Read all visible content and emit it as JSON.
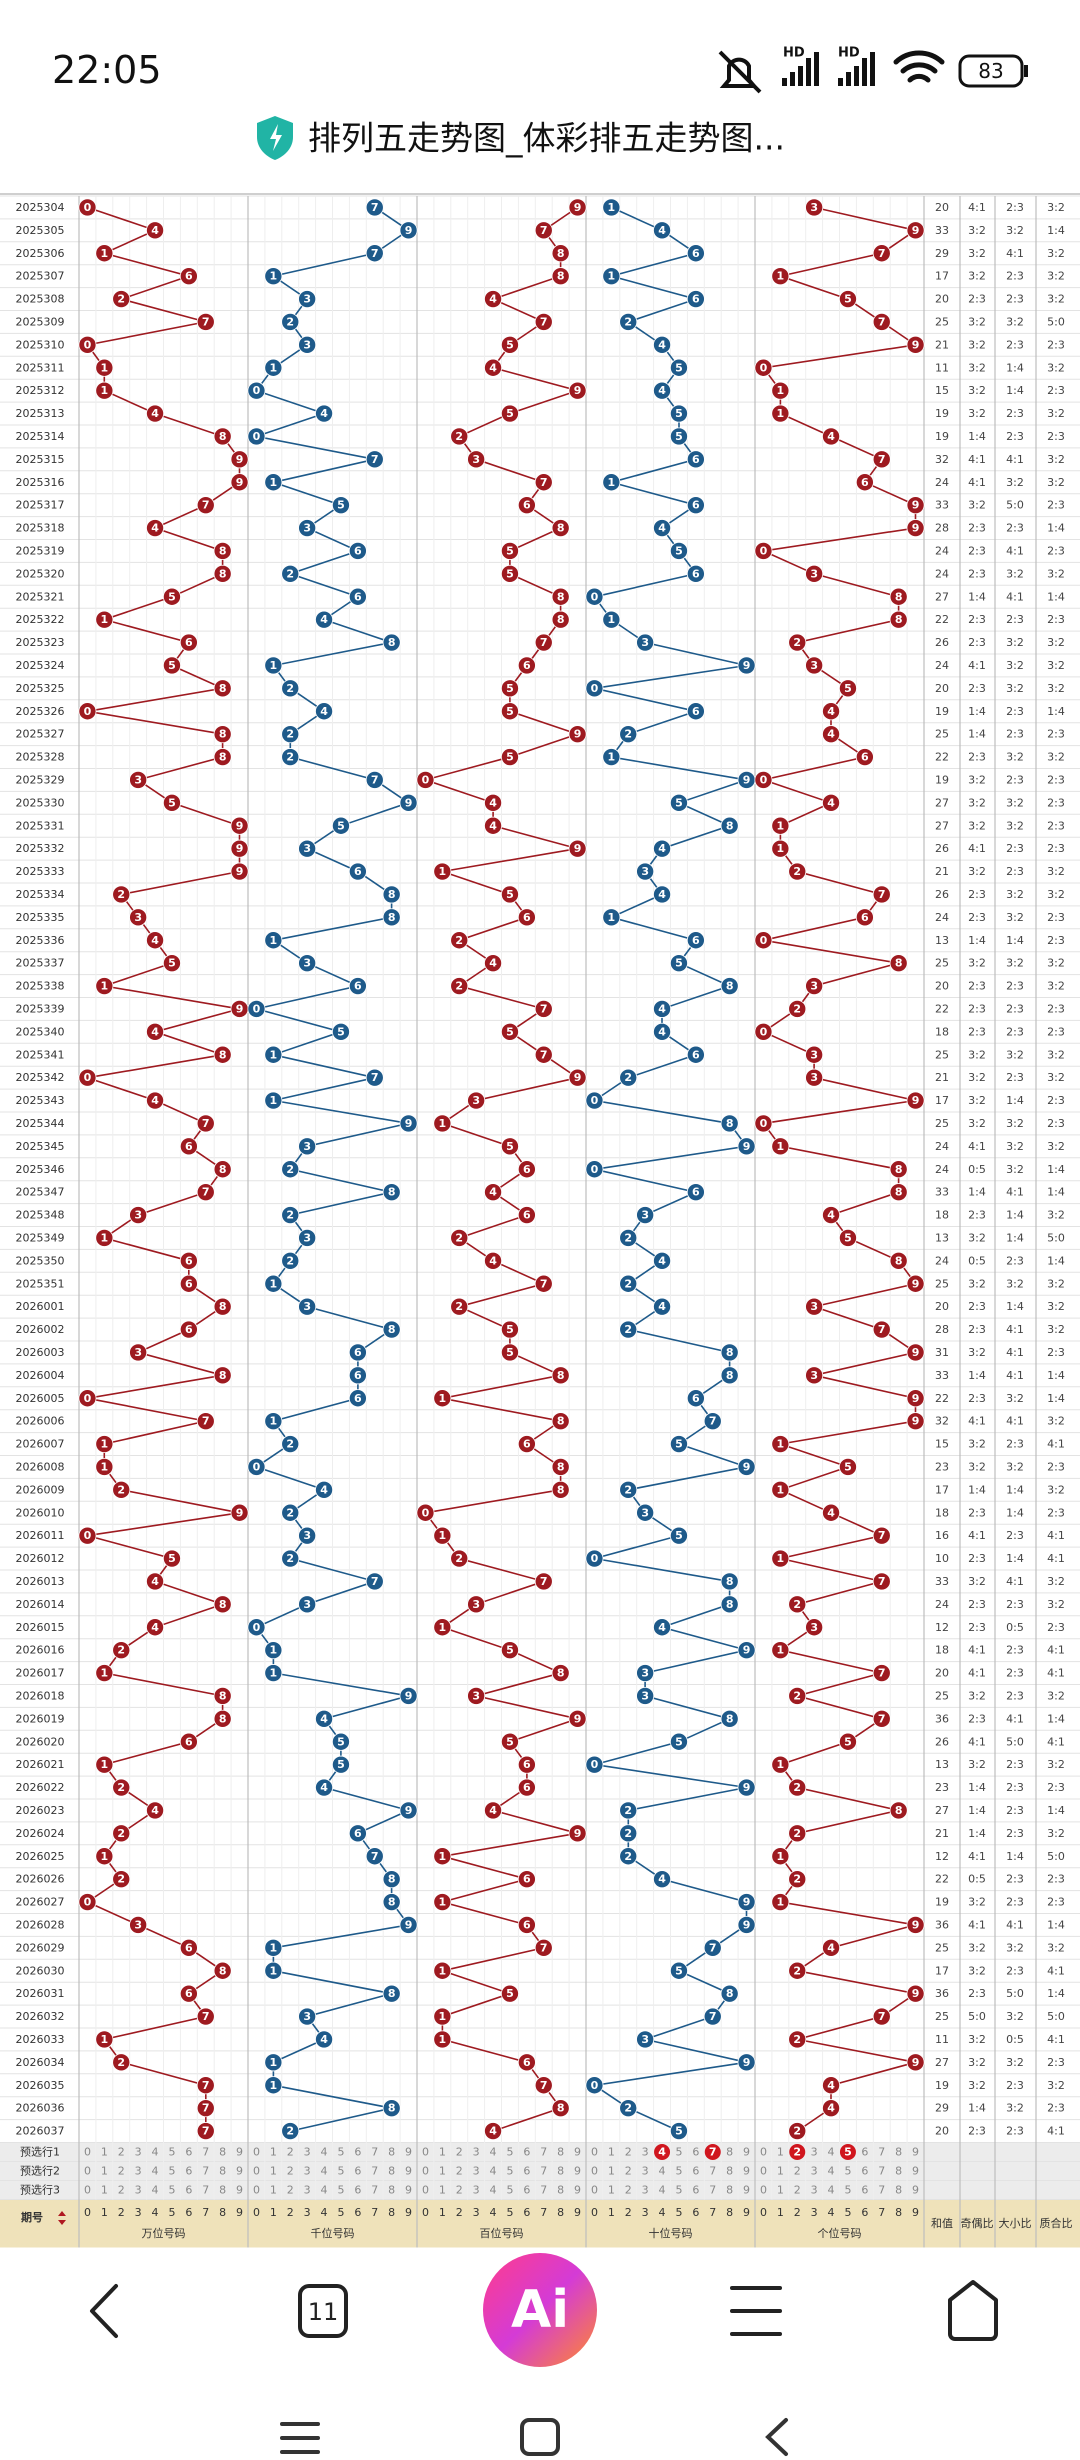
{
  "status_bar": {
    "time": "22:05",
    "network": [
      "HD",
      "HD"
    ],
    "battery": "83"
  },
  "header": {
    "title": "排列五走势图_体彩排五走势图..."
  },
  "table": {
    "rows": [
      [
        "2025304",
        0,
        7,
        9,
        1,
        3,
        20,
        "4:1",
        "2:3",
        "3:2"
      ],
      [
        "2025305",
        4,
        9,
        7,
        4,
        9,
        33,
        "3:2",
        "3:2",
        "1:4"
      ],
      [
        "2025306",
        1,
        7,
        8,
        6,
        7,
        29,
        "3:2",
        "4:1",
        "3:2"
      ],
      [
        "2025307",
        6,
        1,
        8,
        1,
        1,
        17,
        "3:2",
        "2:3",
        "3:2"
      ],
      [
        "2025308",
        2,
        3,
        4,
        6,
        5,
        20,
        "2:3",
        "2:3",
        "3:2"
      ],
      [
        "2025309",
        7,
        2,
        7,
        2,
        7,
        25,
        "3:2",
        "3:2",
        "5:0"
      ],
      [
        "2025310",
        0,
        3,
        5,
        4,
        9,
        21,
        "3:2",
        "2:3",
        "2:3"
      ],
      [
        "2025311",
        1,
        1,
        4,
        5,
        0,
        11,
        "3:2",
        "1:4",
        "3:2"
      ],
      [
        "2025312",
        1,
        0,
        9,
        4,
        1,
        15,
        "3:2",
        "1:4",
        "2:3"
      ],
      [
        "2025313",
        4,
        4,
        5,
        5,
        1,
        19,
        "3:2",
        "2:3",
        "3:2"
      ],
      [
        "2025314",
        8,
        0,
        2,
        5,
        4,
        19,
        "1:4",
        "2:3",
        "2:3"
      ],
      [
        "2025315",
        9,
        7,
        3,
        6,
        7,
        32,
        "4:1",
        "4:1",
        "3:2"
      ],
      [
        "2025316",
        9,
        1,
        7,
        1,
        6,
        24,
        "4:1",
        "3:2",
        "3:2"
      ],
      [
        "2025317",
        7,
        5,
        6,
        6,
        9,
        33,
        "3:2",
        "5:0",
        "2:3"
      ],
      [
        "2025318",
        4,
        3,
        8,
        4,
        9,
        28,
        "2:3",
        "2:3",
        "1:4"
      ],
      [
        "2025319",
        8,
        6,
        5,
        5,
        0,
        24,
        "2:3",
        "4:1",
        "2:3"
      ],
      [
        "2025320",
        8,
        2,
        5,
        6,
        3,
        24,
        "2:3",
        "3:2",
        "3:2"
      ],
      [
        "2025321",
        5,
        6,
        8,
        0,
        8,
        27,
        "1:4",
        "4:1",
        "1:4"
      ],
      [
        "2025322",
        1,
        4,
        8,
        1,
        8,
        22,
        "2:3",
        "2:3",
        "2:3"
      ],
      [
        "2025323",
        6,
        8,
        7,
        3,
        2,
        26,
        "2:3",
        "3:2",
        "3:2"
      ],
      [
        "2025324",
        5,
        1,
        6,
        9,
        3,
        24,
        "4:1",
        "3:2",
        "3:2"
      ],
      [
        "2025325",
        8,
        2,
        5,
        0,
        5,
        20,
        "2:3",
        "3:2",
        "3:2"
      ],
      [
        "2025326",
        0,
        4,
        5,
        6,
        4,
        19,
        "1:4",
        "2:3",
        "1:4"
      ],
      [
        "2025327",
        8,
        2,
        9,
        2,
        4,
        25,
        "1:4",
        "2:3",
        "2:3"
      ],
      [
        "2025328",
        8,
        2,
        5,
        1,
        6,
        22,
        "2:3",
        "3:2",
        "3:2"
      ],
      [
        "2025329",
        3,
        7,
        0,
        9,
        0,
        19,
        "3:2",
        "2:3",
        "2:3"
      ],
      [
        "2025330",
        5,
        9,
        4,
        5,
        4,
        27,
        "3:2",
        "3:2",
        "2:3"
      ],
      [
        "2025331",
        9,
        5,
        4,
        8,
        1,
        27,
        "3:2",
        "3:2",
        "2:3"
      ],
      [
        "2025332",
        9,
        3,
        9,
        4,
        1,
        26,
        "4:1",
        "2:3",
        "2:3"
      ],
      [
        "2025333",
        9,
        6,
        1,
        3,
        2,
        21,
        "3:2",
        "2:3",
        "3:2"
      ],
      [
        "2025334",
        2,
        8,
        5,
        4,
        7,
        26,
        "2:3",
        "3:2",
        "3:2"
      ],
      [
        "2025335",
        3,
        8,
        6,
        1,
        6,
        24,
        "2:3",
        "3:2",
        "2:3"
      ],
      [
        "2025336",
        4,
        1,
        2,
        6,
        0,
        13,
        "1:4",
        "1:4",
        "2:3"
      ],
      [
        "2025337",
        5,
        3,
        4,
        5,
        8,
        25,
        "3:2",
        "3:2",
        "3:2"
      ],
      [
        "2025338",
        1,
        6,
        2,
        8,
        3,
        20,
        "2:3",
        "2:3",
        "3:2"
      ],
      [
        "2025339",
        9,
        0,
        7,
        4,
        2,
        22,
        "2:3",
        "2:3",
        "2:3"
      ],
      [
        "2025340",
        4,
        5,
        5,
        4,
        0,
        18,
        "2:3",
        "2:3",
        "2:3"
      ],
      [
        "2025341",
        8,
        1,
        7,
        6,
        3,
        25,
        "3:2",
        "3:2",
        "3:2"
      ],
      [
        "2025342",
        0,
        7,
        9,
        2,
        3,
        21,
        "3:2",
        "2:3",
        "3:2"
      ],
      [
        "2025343",
        4,
        1,
        3,
        0,
        9,
        17,
        "3:2",
        "1:4",
        "2:3"
      ],
      [
        "2025344",
        7,
        9,
        1,
        8,
        0,
        25,
        "3:2",
        "3:2",
        "2:3"
      ],
      [
        "2025345",
        6,
        3,
        5,
        9,
        1,
        24,
        "4:1",
        "3:2",
        "3:2"
      ],
      [
        "2025346",
        8,
        2,
        6,
        0,
        8,
        24,
        "0:5",
        "3:2",
        "1:4"
      ],
      [
        "2025347",
        7,
        8,
        4,
        6,
        8,
        33,
        "1:4",
        "4:1",
        "1:4"
      ],
      [
        "2025348",
        3,
        2,
        6,
        3,
        4,
        18,
        "2:3",
        "1:4",
        "3:2"
      ],
      [
        "2025349",
        1,
        3,
        2,
        2,
        5,
        13,
        "3:2",
        "1:4",
        "5:0"
      ],
      [
        "2025350",
        6,
        2,
        4,
        4,
        8,
        24,
        "0:5",
        "2:3",
        "1:4"
      ],
      [
        "2025351",
        6,
        1,
        7,
        2,
        9,
        25,
        "3:2",
        "3:2",
        "3:2"
      ],
      [
        "2026001",
        8,
        3,
        2,
        4,
        3,
        20,
        "2:3",
        "1:4",
        "3:2"
      ],
      [
        "2026002",
        6,
        8,
        5,
        2,
        7,
        28,
        "2:3",
        "4:1",
        "3:2"
      ],
      [
        "2026003",
        3,
        6,
        5,
        8,
        9,
        31,
        "3:2",
        "4:1",
        "2:3"
      ],
      [
        "2026004",
        8,
        6,
        8,
        8,
        3,
        33,
        "1:4",
        "4:1",
        "1:4"
      ],
      [
        "2026005",
        0,
        6,
        1,
        6,
        9,
        22,
        "2:3",
        "3:2",
        "1:4"
      ],
      [
        "2026006",
        7,
        1,
        8,
        7,
        9,
        32,
        "4:1",
        "4:1",
        "3:2"
      ],
      [
        "2026007",
        1,
        2,
        6,
        5,
        1,
        15,
        "3:2",
        "2:3",
        "4:1"
      ],
      [
        "2026008",
        1,
        0,
        8,
        9,
        5,
        23,
        "3:2",
        "3:2",
        "2:3"
      ],
      [
        "2026009",
        2,
        4,
        8,
        2,
        1,
        17,
        "1:4",
        "1:4",
        "3:2"
      ],
      [
        "2026010",
        9,
        2,
        0,
        3,
        4,
        18,
        "2:3",
        "1:4",
        "2:3"
      ],
      [
        "2026011",
        0,
        3,
        1,
        5,
        7,
        16,
        "4:1",
        "2:3",
        "4:1"
      ],
      [
        "2026012",
        5,
        2,
        2,
        0,
        1,
        10,
        "2:3",
        "1:4",
        "4:1"
      ],
      [
        "2026013",
        4,
        7,
        7,
        8,
        7,
        33,
        "3:2",
        "4:1",
        "3:2"
      ],
      [
        "2026014",
        8,
        3,
        3,
        8,
        2,
        24,
        "2:3",
        "2:3",
        "3:2"
      ],
      [
        "2026015",
        4,
        0,
        1,
        4,
        3,
        12,
        "2:3",
        "0:5",
        "2:3"
      ],
      [
        "2026016",
        2,
        1,
        5,
        9,
        1,
        18,
        "4:1",
        "2:3",
        "4:1"
      ],
      [
        "2026017",
        1,
        1,
        8,
        3,
        7,
        20,
        "4:1",
        "2:3",
        "4:1"
      ],
      [
        "2026018",
        8,
        9,
        3,
        3,
        2,
        25,
        "3:2",
        "2:3",
        "3:2"
      ],
      [
        "2026019",
        8,
        4,
        9,
        8,
        7,
        36,
        "2:3",
        "4:1",
        "1:4"
      ],
      [
        "2026020",
        6,
        5,
        5,
        5,
        5,
        26,
        "4:1",
        "5:0",
        "4:1"
      ],
      [
        "2026021",
        1,
        5,
        6,
        0,
        1,
        13,
        "3:2",
        "2:3",
        "3:2"
      ],
      [
        "2026022",
        2,
        4,
        6,
        9,
        2,
        23,
        "1:4",
        "2:3",
        "2:3"
      ],
      [
        "2026023",
        4,
        9,
        4,
        2,
        8,
        27,
        "1:4",
        "2:3",
        "1:4"
      ],
      [
        "2026024",
        2,
        6,
        9,
        2,
        2,
        21,
        "1:4",
        "2:3",
        "3:2"
      ],
      [
        "2026025",
        1,
        7,
        1,
        2,
        1,
        12,
        "4:1",
        "1:4",
        "5:0"
      ],
      [
        "2026026",
        2,
        8,
        6,
        4,
        2,
        22,
        "0:5",
        "2:3",
        "2:3"
      ],
      [
        "2026027",
        0,
        8,
        1,
        9,
        1,
        19,
        "3:2",
        "2:3",
        "2:3"
      ],
      [
        "2026028",
        3,
        9,
        6,
        9,
        9,
        36,
        "4:1",
        "4:1",
        "1:4"
      ],
      [
        "2026029",
        6,
        1,
        7,
        7,
        4,
        25,
        "3:2",
        "3:2",
        "3:2"
      ],
      [
        "2026030",
        8,
        1,
        1,
        5,
        2,
        17,
        "3:2",
        "2:3",
        "4:1"
      ],
      [
        "2026031",
        6,
        8,
        5,
        8,
        9,
        36,
        "2:3",
        "5:0",
        "1:4"
      ],
      [
        "2026032",
        7,
        3,
        1,
        7,
        7,
        25,
        "5:0",
        "3:2",
        "5:0"
      ],
      [
        "2026033",
        1,
        4,
        1,
        3,
        2,
        11,
        "3:2",
        "0:5",
        "4:1"
      ],
      [
        "2026034",
        2,
        1,
        6,
        9,
        9,
        27,
        "3:2",
        "3:2",
        "2:3"
      ],
      [
        "2026035",
        7,
        1,
        7,
        0,
        4,
        19,
        "3:2",
        "2:3",
        "3:2"
      ],
      [
        "2026036",
        7,
        8,
        8,
        2,
        4,
        29,
        "1:4",
        "3:2",
        "2:3"
      ],
      [
        "2026037",
        7,
        2,
        4,
        5,
        2,
        20,
        "2:3",
        "2:3",
        "4:1"
      ]
    ],
    "preselect": [
      {
        "label": "预选行1",
        "selected": [
          [],
          [],
          [],
          [
            4,
            7
          ],
          [
            2,
            5
          ]
        ]
      },
      {
        "label": "预选行2",
        "selected": [
          [],
          [],
          [],
          [],
          []
        ]
      },
      {
        "label": "预选行3",
        "selected": [
          [],
          [],
          [],
          [],
          []
        ]
      }
    ],
    "footer": {
      "period": "期号",
      "digits": [
        0,
        1,
        2,
        3,
        4,
        5,
        6,
        7,
        8,
        9
      ],
      "positions": [
        "万位号码",
        "千位号码",
        "百位号码",
        "十位号码",
        "个位号码"
      ],
      "stats": [
        "和值",
        "奇偶比",
        "大小比",
        "质合比"
      ]
    }
  },
  "nav": {
    "tabs": "11",
    "ai": "Ai"
  }
}
